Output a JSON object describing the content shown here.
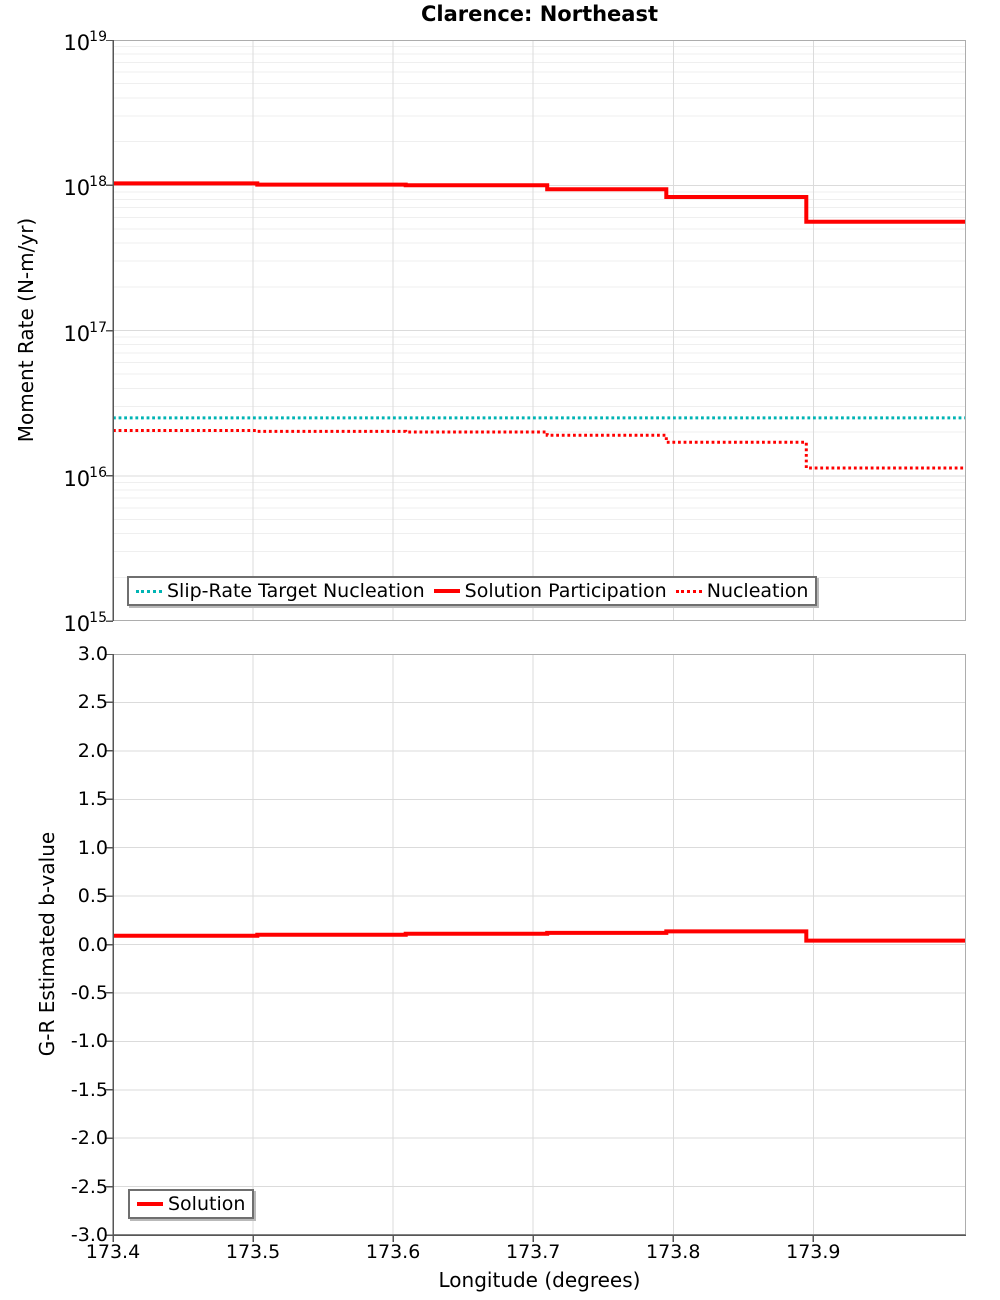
{
  "title": "Clarence: Northeast",
  "xlabel": "Longitude (degrees)",
  "colors": {
    "solution_red": "#FF0000",
    "target_teal": "#00B4B4",
    "grid_major": "#DBDBDB",
    "grid_minor": "#EFEFEF",
    "outline": "#ADADAD",
    "axis_line": "#565656",
    "text": "#000000",
    "legend_border": "#6F6F6F"
  },
  "x_axis": {
    "ticks": [
      173.4,
      173.5,
      173.6,
      173.7,
      173.8,
      173.9
    ],
    "lim": [
      173.4,
      174.009
    ]
  },
  "top_plot": {
    "ylabel": "Moment Rate (N-m/yr)",
    "yscale": "log",
    "ytick_exponents": [
      19,
      18,
      17,
      16,
      15
    ],
    "legend": [
      {
        "label": "Slip-Rate Target Nucleation",
        "style": "dotted",
        "color": "#00B4B4"
      },
      {
        "label": "Solution Participation",
        "style": "solid",
        "color": "#FF0000"
      },
      {
        "label": "Nucleation",
        "style": "dotted",
        "color": "#FF0000"
      }
    ]
  },
  "bottom_plot": {
    "ylabel": "G-R Estimated b-value",
    "ylim": [
      -3.0,
      3.0
    ],
    "ytick_step": 0.5,
    "legend": [
      {
        "label": "Solution",
        "style": "solid",
        "color": "#FF0000"
      }
    ]
  },
  "chart_data": [
    {
      "type": "line",
      "subplot": "top",
      "title": "Clarence: Northeast",
      "xlabel": "Longitude (degrees)",
      "ylabel": "Moment Rate (N-m/yr)",
      "yscale": "log",
      "ylim": [
        1000000000000000.0,
        1e+19
      ],
      "xlim": [
        173.4,
        174.009
      ],
      "grid": true,
      "legend_position": "bottom-left",
      "step_edges": [
        173.4,
        173.503,
        173.609,
        173.71,
        173.795,
        173.895,
        174.009
      ],
      "series": [
        {
          "name": "Slip-Rate Target Nucleation",
          "style": "dotted",
          "color": "#00B4B4",
          "values": [
            2.5e+16,
            2.5e+16,
            2.5e+16,
            2.5e+16,
            2.5e+16,
            2.5e+16
          ]
        },
        {
          "name": "Solution Participation",
          "style": "solid",
          "color": "#FF0000",
          "values": [
            1.03e+18,
            1.01e+18,
            1e+18,
            9.4e+17,
            8.3e+17,
            5.6e+17
          ]
        },
        {
          "name": "Nucleation",
          "style": "dotted",
          "color": "#FF0000",
          "values": [
            2.05e+16,
            2.02e+16,
            2e+16,
            1.9e+16,
            1.7e+16,
            1.13e+16
          ]
        }
      ]
    },
    {
      "type": "line",
      "subplot": "bottom",
      "xlabel": "Longitude (degrees)",
      "ylabel": "G-R Estimated b-value",
      "ylim": [
        -3.0,
        3.0
      ],
      "xlim": [
        173.4,
        174.009
      ],
      "grid": true,
      "legend_position": "bottom-left",
      "step_edges": [
        173.4,
        173.503,
        173.609,
        173.71,
        173.795,
        173.895,
        174.009
      ],
      "series": [
        {
          "name": "Solution",
          "style": "solid",
          "color": "#FF0000",
          "values": [
            0.09,
            0.1,
            0.11,
            0.12,
            0.135,
            0.04
          ]
        }
      ]
    }
  ]
}
